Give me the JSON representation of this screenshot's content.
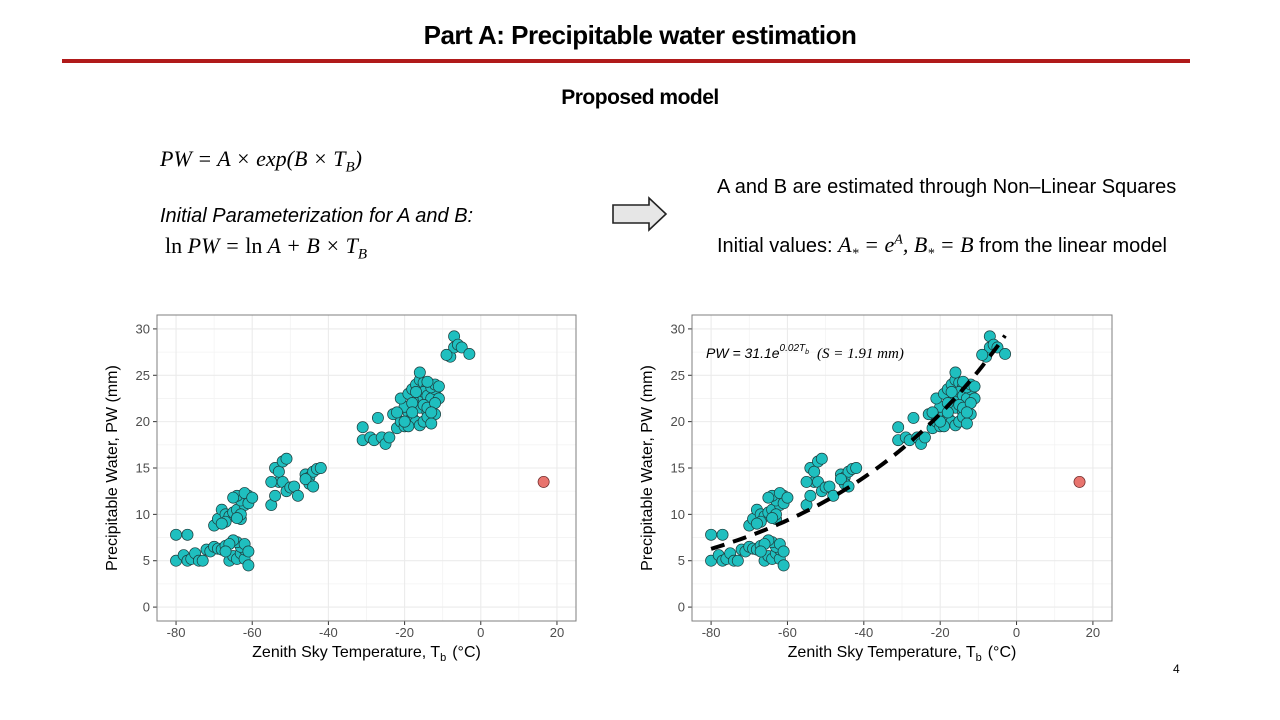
{
  "slide": {
    "title": "Part A:  Precipitable water estimation",
    "subtitle": "Proposed model",
    "page_number": "4"
  },
  "left_text": {
    "model_lhs": "PW",
    "model_rhs": "= A × exp(B × T",
    "model_sub": "B",
    "model_close": ")",
    "init_heading": "Initial Parameterization for A and B:",
    "log_line_1": "ln",
    "log_line_2": "PW = ",
    "log_line_3": "ln",
    "log_line_4": "A + B × T",
    "log_sub": "B"
  },
  "right_text": {
    "line1": "A and B are estimated through Non–Linear Squares",
    "line2_prefix": "Initial values: ",
    "line2_a": "A",
    "line2_star1": "*",
    "line2_eq1": " = e",
    "line2_sup": "A",
    "line2_comma": ", B",
    "line2_star2": "*",
    "line2_eq2": " = B",
    "line2_suffix": " from the linear model"
  },
  "arrow_icon": "right-arrow-icon",
  "colors": {
    "accent_rule": "#b01a1a",
    "point_fill": "#1fbfbf",
    "outlier_fill": "#e8746e",
    "grid": "#ebebeb",
    "panel_border": "#7f7f7f"
  },
  "chart_data": [
    {
      "type": "scatter",
      "xlabel": "Zenith Sky Temperature, T",
      "xlabel_sub": "b",
      "xlabel_unit": "(°C)",
      "ylabel": "Precipitable Water, PW (mm)",
      "xlim": [
        -85,
        25
      ],
      "ylim": [
        -1.5,
        31.5
      ],
      "xticks": [
        -80,
        -60,
        -40,
        -20,
        0,
        20
      ],
      "yticks": [
        0,
        5,
        10,
        15,
        20,
        25,
        30
      ],
      "grid": true,
      "annotation": null,
      "fit_curve": null
    },
    {
      "type": "scatter",
      "xlabel": "Zenith Sky Temperature, T",
      "xlabel_sub": "b",
      "xlabel_unit": "(°C)",
      "ylabel": "Precipitable Water, PW (mm)",
      "xlim": [
        -85,
        25
      ],
      "ylim": [
        -1.5,
        31.5
      ],
      "xticks": [
        -80,
        -60,
        -40,
        -20,
        0,
        20
      ],
      "yticks": [
        0,
        5,
        10,
        15,
        20,
        25,
        30
      ],
      "grid": true,
      "annotation": {
        "prefix": "PW = 31.1e",
        "sup": "0.02T",
        "sup_sub": "b",
        "fit": "(S = 1.91 mm)"
      },
      "fit_curve": {
        "A": 31.1,
        "B": 0.02,
        "x_range": [
          -80,
          -3
        ],
        "style": "dashed"
      }
    }
  ],
  "scatter_points": [
    [
      -80,
      7.8
    ],
    [
      -77,
      7.8
    ],
    [
      -80,
      5.0
    ],
    [
      -78,
      5.6
    ],
    [
      -77,
      5.0
    ],
    [
      -76,
      5.2
    ],
    [
      -75,
      5.8
    ],
    [
      -74,
      5.0
    ],
    [
      -73,
      5.0
    ],
    [
      -72,
      6.2
    ],
    [
      -71,
      6.0
    ],
    [
      -70,
      6.5
    ],
    [
      -69,
      6.3
    ],
    [
      -68,
      6.2
    ],
    [
      -67,
      6.6
    ],
    [
      -66,
      5.0
    ],
    [
      -65,
      5.5
    ],
    [
      -64,
      5.2
    ],
    [
      -63,
      5.8
    ],
    [
      -62,
      5.2
    ],
    [
      -61,
      4.5
    ],
    [
      -62,
      6.2
    ],
    [
      -63,
      6.5
    ],
    [
      -64,
      7.0
    ],
    [
      -65,
      7.2
    ],
    [
      -66,
      6.8
    ],
    [
      -67,
      6.0
    ],
    [
      -62,
      6.8
    ],
    [
      -61,
      6.0
    ],
    [
      -70,
      8.8
    ],
    [
      -69,
      9.5
    ],
    [
      -68,
      10.5
    ],
    [
      -67,
      10.0
    ],
    [
      -66,
      9.8
    ],
    [
      -65,
      10.2
    ],
    [
      -64,
      10.5
    ],
    [
      -63,
      9.5
    ],
    [
      -62,
      11.0
    ],
    [
      -63,
      11.5
    ],
    [
      -64,
      12.0
    ],
    [
      -65,
      11.8
    ],
    [
      -61,
      12.0
    ],
    [
      -62,
      12.3
    ],
    [
      -63,
      10.0
    ],
    [
      -67,
      9.2
    ],
    [
      -68,
      9.0
    ],
    [
      -61,
      11.2
    ],
    [
      -60,
      11.8
    ],
    [
      -64,
      9.6
    ],
    [
      -55,
      11.0
    ],
    [
      -54,
      12.0
    ],
    [
      -53,
      13.5
    ],
    [
      -52,
      13.5
    ],
    [
      -51,
      12.5
    ],
    [
      -50,
      12.9
    ],
    [
      -49,
      13.0
    ],
    [
      -48,
      12.0
    ],
    [
      -55,
      13.5
    ],
    [
      -54,
      15.0
    ],
    [
      -53,
      14.6
    ],
    [
      -52,
      15.7
    ],
    [
      -51,
      16.0
    ],
    [
      -46,
      14.3
    ],
    [
      -45,
      14.0
    ],
    [
      -44,
      14.6
    ],
    [
      -43,
      14.9
    ],
    [
      -42,
      15.0
    ],
    [
      -45,
      13.3
    ],
    [
      -46,
      13.8
    ],
    [
      -44,
      13.0
    ],
    [
      -31,
      19.4
    ],
    [
      -31,
      18.0
    ],
    [
      -29,
      18.3
    ],
    [
      -28,
      18.0
    ],
    [
      -27,
      20.4
    ],
    [
      -26,
      18.3
    ],
    [
      -25,
      17.6
    ],
    [
      -24,
      18.3
    ],
    [
      -23,
      20.8
    ],
    [
      -22,
      19.3
    ],
    [
      -21,
      20.0
    ],
    [
      -20,
      19.5
    ],
    [
      -19,
      21.0
    ],
    [
      -18,
      20.5
    ],
    [
      -17,
      22.0
    ],
    [
      -16,
      21.5
    ],
    [
      -15,
      22.5
    ],
    [
      -14,
      21.0
    ],
    [
      -13,
      22.2
    ],
    [
      -12,
      20.8
    ],
    [
      -20,
      21.6
    ],
    [
      -21,
      22.5
    ],
    [
      -22,
      21.0
    ],
    [
      -19,
      23.0
    ],
    [
      -18,
      23.5
    ],
    [
      -17,
      24.0
    ],
    [
      -16,
      24.5
    ],
    [
      -15,
      24.2
    ],
    [
      -14,
      23.8
    ],
    [
      -13,
      24.0
    ],
    [
      -12,
      23.0
    ],
    [
      -16,
      25.3
    ],
    [
      -15,
      23.2
    ],
    [
      -14,
      22.8
    ],
    [
      -13,
      22.5
    ],
    [
      -12,
      23.5
    ],
    [
      -17,
      20.0
    ],
    [
      -16,
      19.6
    ],
    [
      -15,
      20.0
    ],
    [
      -14,
      20.5
    ],
    [
      -13,
      19.8
    ],
    [
      -18,
      22.0
    ],
    [
      -19,
      19.5
    ],
    [
      -20,
      20.0
    ],
    [
      -15,
      21.8
    ],
    [
      -14,
      21.5
    ],
    [
      -13,
      23.7
    ],
    [
      -12,
      24.0
    ],
    [
      -11,
      23.8
    ],
    [
      -11,
      22.5
    ],
    [
      -12,
      22.0
    ],
    [
      -13,
      21.0
    ],
    [
      -18,
      21.0
    ],
    [
      -17,
      23.2
    ],
    [
      -14,
      24.3
    ],
    [
      -8,
      27.0
    ],
    [
      -7,
      28.0
    ],
    [
      -7,
      29.2
    ],
    [
      -6,
      28.3
    ],
    [
      -5,
      28.0
    ],
    [
      -3,
      27.3
    ],
    [
      -9,
      27.2
    ]
  ],
  "outlier_point": [
    16.5,
    13.5
  ]
}
